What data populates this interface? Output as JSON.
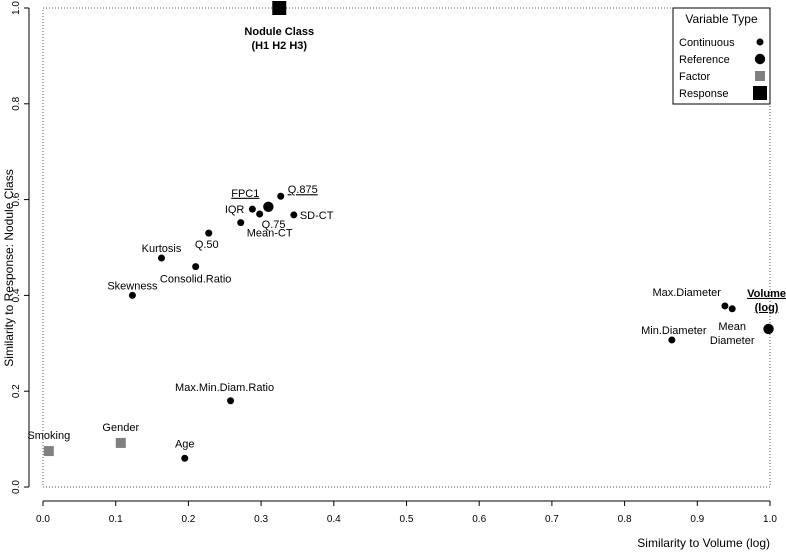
{
  "chart_data": {
    "type": "scatter",
    "xlabel": "Similarity to Volume (log)",
    "ylabel": "Similarity to Response: Nodule Class",
    "xlim": [
      0,
      1
    ],
    "ylim": [
      0,
      1
    ],
    "x_ticks": [
      "0.0",
      "0.1",
      "0.2",
      "0.3",
      "0.4",
      "0.5",
      "0.6",
      "0.7",
      "0.8",
      "0.9",
      "1.0"
    ],
    "y_ticks": [
      "0.0",
      "0.2",
      "0.4",
      "0.6",
      "0.8",
      "1.0"
    ],
    "grid": false,
    "legend": {
      "title": "Variable Type",
      "position": "top-right",
      "items": [
        {
          "label": "Continuous",
          "marker": "small-circle"
        },
        {
          "label": "Reference",
          "marker": "large-circle"
        },
        {
          "label": "Factor",
          "marker": "gray-square"
        },
        {
          "label": "Response",
          "marker": "black-square"
        }
      ]
    },
    "points": [
      {
        "label": "Nodule Class (H1 H2 H3)",
        "label_lines": [
          "Nodule Class",
          "(H1 H2 H3)"
        ],
        "type": "Response",
        "x": 0.325,
        "y": 1.0,
        "bold": true
      },
      {
        "label": "Q.875",
        "type": "Continuous",
        "x": 0.327,
        "y": 0.607,
        "underline": true
      },
      {
        "label": "FPC1",
        "type": "Reference",
        "x": 0.31,
        "y": 0.585,
        "underline": true
      },
      {
        "label": "IQR",
        "type": "Continuous",
        "x": 0.288,
        "y": 0.58
      },
      {
        "label": "Q.75",
        "type": "Continuous",
        "x": 0.298,
        "y": 0.57
      },
      {
        "label": "SD-CT",
        "type": "Continuous",
        "x": 0.345,
        "y": 0.568
      },
      {
        "label": "Mean-CT",
        "type": "Continuous",
        "x": 0.272,
        "y": 0.552
      },
      {
        "label": "Q.50",
        "type": "Continuous",
        "x": 0.228,
        "y": 0.53
      },
      {
        "label": "Kurtosis",
        "type": "Continuous",
        "x": 0.163,
        "y": 0.478
      },
      {
        "label": "Consolid.Ratio",
        "type": "Continuous",
        "x": 0.21,
        "y": 0.46
      },
      {
        "label": "Skewness",
        "type": "Continuous",
        "x": 0.123,
        "y": 0.4
      },
      {
        "label": "Max.Diameter",
        "type": "Continuous",
        "x": 0.938,
        "y": 0.378
      },
      {
        "label": "Mean Diameter",
        "label_lines": [
          "Mean",
          "Diameter"
        ],
        "type": "Continuous",
        "x": 0.948,
        "y": 0.372
      },
      {
        "label": "Volume (log)",
        "label_lines": [
          "Volume",
          "(log)"
        ],
        "type": "Reference",
        "x": 0.998,
        "y": 0.33,
        "bold": true,
        "underline": true
      },
      {
        "label": "Min.Diameter",
        "type": "Continuous",
        "x": 0.865,
        "y": 0.307
      },
      {
        "label": "Max.Min.Diam.Ratio",
        "type": "Continuous",
        "x": 0.258,
        "y": 0.18
      },
      {
        "label": "Smoking",
        "type": "Factor",
        "x": 0.008,
        "y": 0.075
      },
      {
        "label": "Gender",
        "type": "Factor",
        "x": 0.107,
        "y": 0.092
      },
      {
        "label": "Age",
        "type": "Continuous",
        "x": 0.195,
        "y": 0.06
      }
    ]
  }
}
